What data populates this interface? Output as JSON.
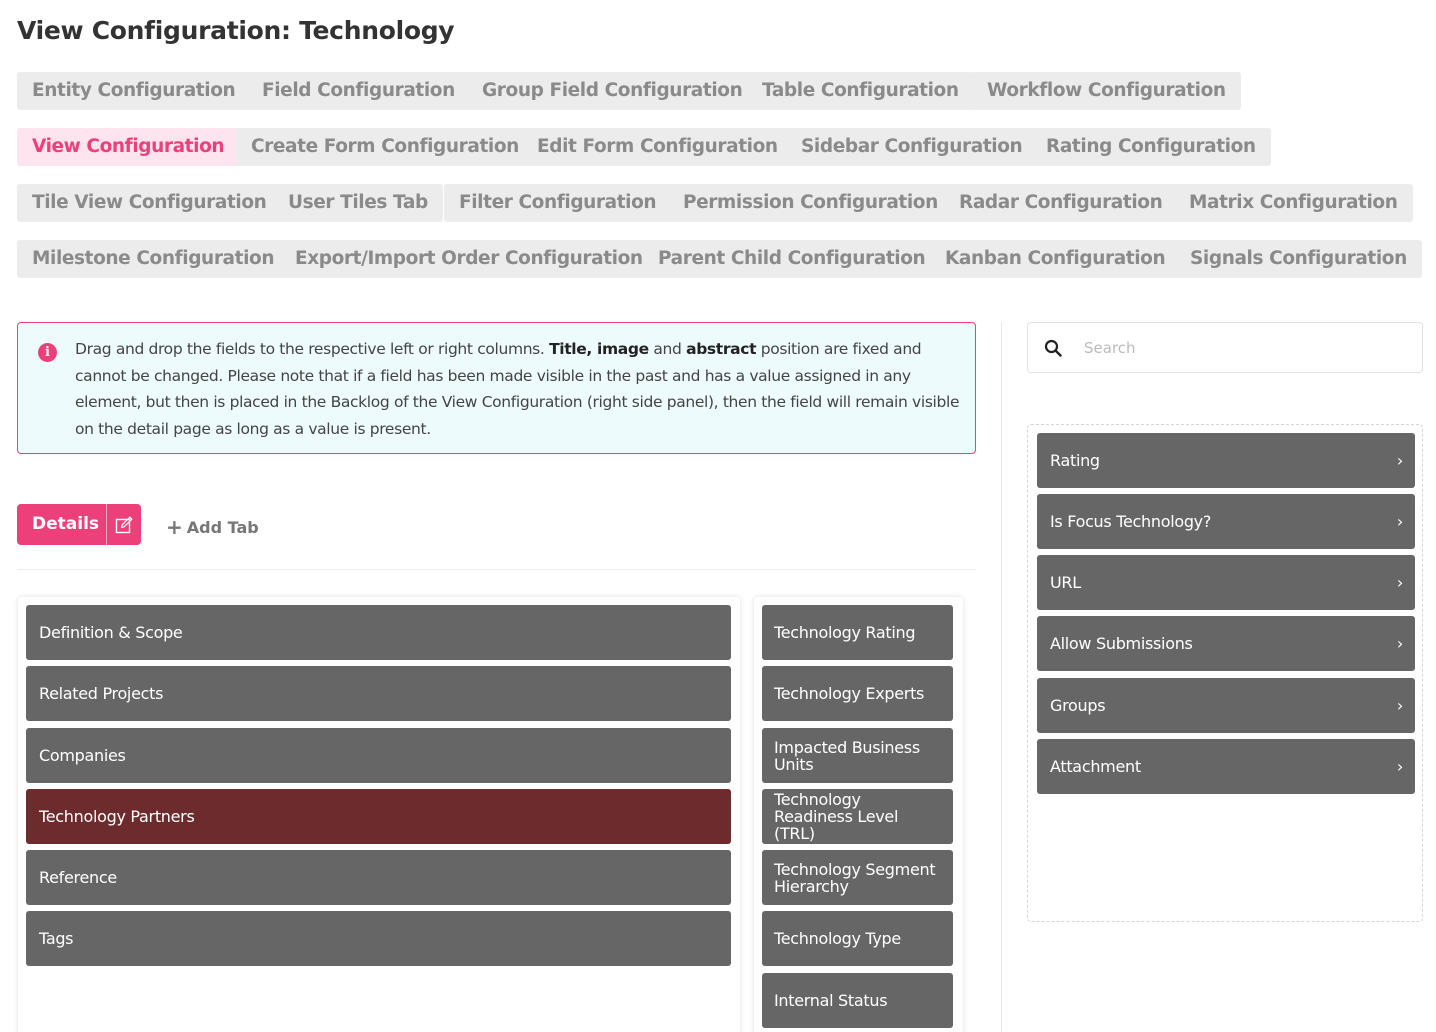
{
  "page": {
    "title": "View Configuration: Technology"
  },
  "nav": {
    "rows": [
      [
        {
          "label": "Entity Configuration"
        },
        {
          "label": "Field Configuration"
        },
        {
          "label": "Group Field Configuration"
        },
        {
          "label": "Table Configuration"
        },
        {
          "label": "Workflow Configuration"
        }
      ],
      [
        {
          "label": "View Configuration",
          "active": true
        },
        {
          "label": "Create Form Configuration"
        },
        {
          "label": "Edit Form Configuration"
        },
        {
          "label": "Sidebar Configuration"
        },
        {
          "label": "Rating Configuration"
        }
      ],
      [
        {
          "label": "Tile View Configuration"
        },
        {
          "label": "User Tiles Tab"
        },
        {
          "label": "Filter Configuration"
        },
        {
          "label": "Permission Configuration"
        },
        {
          "label": "Radar Configuration"
        },
        {
          "label": "Matrix Configuration"
        }
      ],
      [
        {
          "label": "Milestone Configuration"
        },
        {
          "label": "Export/Import Order Configuration"
        },
        {
          "label": "Parent Child Configuration"
        },
        {
          "label": "Kanban Configuration"
        },
        {
          "label": "Signals Configuration"
        }
      ]
    ]
  },
  "info": {
    "icon": "info-icon",
    "text_1": "Drag and drop the fields to the respective left or right columns. ",
    "bold_1": "Title, image",
    "text_2": " and ",
    "bold_2": "abstract",
    "text_3": " position are fixed and cannot be changed. Please note that if a field has been made visible in the past and has a value assigned in any element, but then is placed in the Backlog of the View Configuration (right side panel), then the field will remain visible on the detail page as long as a value is present."
  },
  "tabs": {
    "details_label": "Details",
    "edit_icon": "edit-icon",
    "add_tab_label": "Add Tab"
  },
  "left_column": {
    "fields": [
      "Definition & Scope",
      "Related Projects",
      "Companies",
      "Technology Partners",
      "Reference",
      "Tags"
    ],
    "highlighted": "Technology Partners"
  },
  "right_column": {
    "fields": [
      "Technology Rating",
      "Technology Experts",
      "Impacted Business Units",
      "Technology Readiness Level (TRL)",
      "Technology Segment Hierarchy",
      "Technology Type",
      "Internal Status"
    ]
  },
  "search": {
    "placeholder": "Search",
    "value": ""
  },
  "backlog": {
    "fields": [
      "Rating",
      "Is Focus Technology?",
      "URL",
      "Allow Submissions",
      "Groups",
      "Attachment"
    ]
  },
  "colors": {
    "accent": "#ec407a",
    "field_bg": "#666666",
    "field_highlight": "#6e2b2e",
    "chip_bg": "#ececec",
    "info_bg": "#eefbfd"
  }
}
